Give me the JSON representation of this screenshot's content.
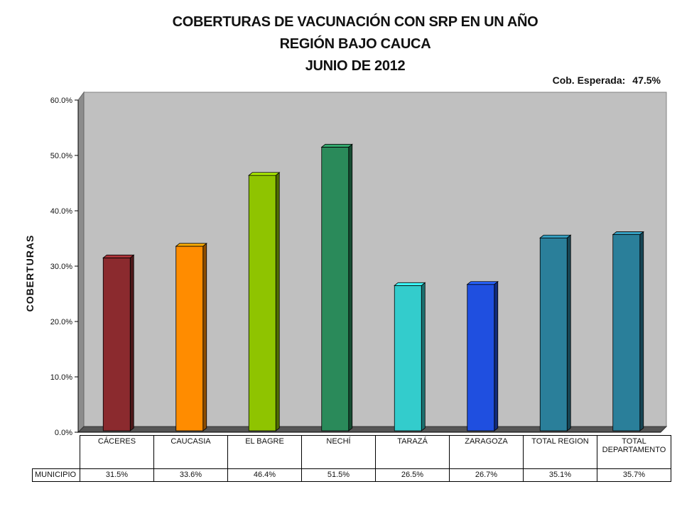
{
  "title": {
    "line1": "COBERTURAS DE VACUNACIÓN CON SRP EN UN AÑO",
    "line2": "REGIÓN BAJO CAUCA",
    "line3": "JUNIO DE 2012"
  },
  "expected": {
    "label": "Cob. Esperada:",
    "value": "47.5%"
  },
  "chart_data": {
    "type": "bar",
    "ylabel": "COBERTURAS",
    "ylim": [
      0,
      60
    ],
    "yticks": [
      "0.0%",
      "10.0%",
      "20.0%",
      "30.0%",
      "40.0%",
      "50.0%",
      "60.0%"
    ],
    "grid": false,
    "categories": [
      "CÁCERES",
      "CAUCASIA",
      "EL BAGRE",
      "NECHÍ",
      "TARAZÁ",
      "ZARAGOZA",
      "TOTAL REGION",
      "TOTAL DEPARTAMENTO"
    ],
    "series": [
      {
        "name": "MUNICIPIO",
        "values": [
          31.5,
          33.6,
          46.4,
          51.5,
          26.5,
          26.7,
          35.1,
          35.7
        ],
        "labels": [
          "31.5%",
          "33.6%",
          "46.4%",
          "51.5%",
          "26.5%",
          "26.7%",
          "35.1%",
          "35.7%"
        ]
      }
    ],
    "colors": [
      "#8b2a2e",
      "#ff8c00",
      "#8fc400",
      "#2a8a5a",
      "#33cccc",
      "#1f4fe0",
      "#2a7f9a",
      "#2a7f9a"
    ]
  }
}
